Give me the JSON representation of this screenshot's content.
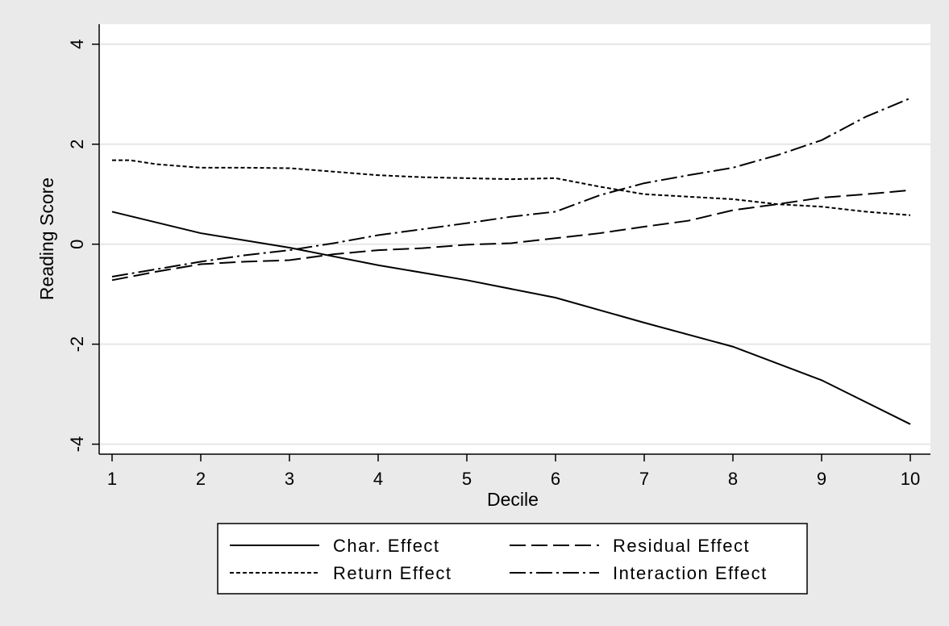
{
  "chart_data": {
    "type": "line",
    "xlabel": "Decile",
    "ylabel": "Reading Score",
    "xlim": [
      1,
      10
    ],
    "ylim": [
      -4.2,
      4.4
    ],
    "x_ticks": [
      1,
      2,
      3,
      4,
      5,
      6,
      7,
      8,
      9,
      10
    ],
    "y_ticks": [
      -4,
      -2,
      0,
      2,
      4
    ],
    "y_tick_labels": [
      "-4",
      "-2",
      "0",
      "2",
      "4"
    ],
    "grid": true,
    "legend_position": "bottom",
    "series": [
      {
        "name": "Char. Effect",
        "style": "solid",
        "x": [
          1,
          2,
          3,
          4,
          5,
          6,
          7,
          8,
          9,
          10
        ],
        "values": [
          0.65,
          0.22,
          -0.07,
          -0.42,
          -0.72,
          -1.07,
          -1.57,
          -2.05,
          -2.72,
          -3.6
        ]
      },
      {
        "name": "Residual Effect",
        "style": "longdash",
        "x": [
          1,
          1.5,
          2,
          2.5,
          3,
          3.5,
          4,
          4.5,
          5,
          5.5,
          6,
          6.5,
          7,
          7.5,
          8,
          8.5,
          9,
          9.5,
          10
        ],
        "values": [
          -0.72,
          -0.55,
          -0.4,
          -0.35,
          -0.32,
          -0.2,
          -0.12,
          -0.08,
          -0.01,
          0.02,
          0.12,
          0.22,
          0.35,
          0.47,
          0.68,
          0.8,
          0.93,
          1.0,
          1.08
        ]
      },
      {
        "name": "Return Effect",
        "style": "shortdash",
        "x": [
          1,
          1.2,
          1.5,
          2,
          2.5,
          3,
          3.5,
          4,
          4.5,
          5,
          5.5,
          6,
          6.5,
          7,
          7.5,
          8,
          8.5,
          9,
          9.5,
          10
        ],
        "values": [
          1.68,
          1.68,
          1.6,
          1.53,
          1.53,
          1.52,
          1.45,
          1.38,
          1.34,
          1.32,
          1.3,
          1.32,
          1.15,
          1.0,
          0.95,
          0.9,
          0.8,
          0.75,
          0.65,
          0.58
        ]
      },
      {
        "name": "Interaction Effect",
        "style": "dashdot",
        "x": [
          1,
          1.5,
          2,
          2.5,
          3,
          3.5,
          4,
          4.5,
          5,
          5.5,
          6,
          6.5,
          7,
          7.5,
          8,
          8.5,
          9,
          9.5,
          10
        ],
        "values": [
          -0.65,
          -0.5,
          -0.35,
          -0.22,
          -0.12,
          0.02,
          0.18,
          0.3,
          0.42,
          0.55,
          0.65,
          0.98,
          1.22,
          1.38,
          1.53,
          1.78,
          2.08,
          2.55,
          2.92
        ]
      }
    ]
  }
}
